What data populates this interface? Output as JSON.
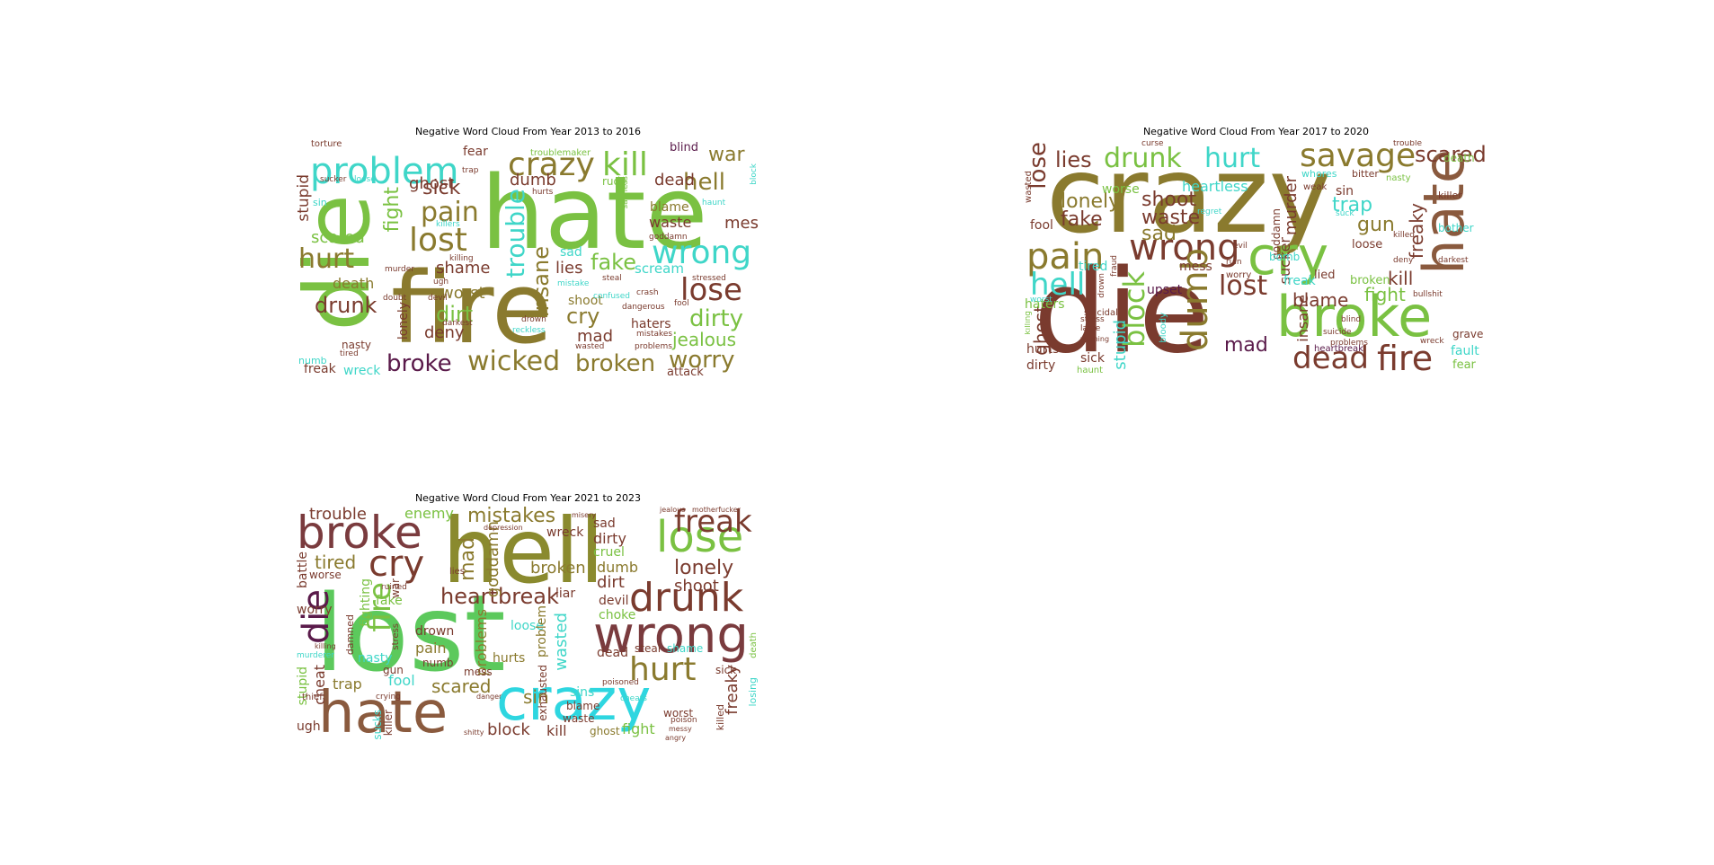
{
  "panels": [
    {
      "title": "Negative Word Cloud From Year 2013 to 2016",
      "words": [
        {
          "t": "die",
          "c": "#7ac142"
        },
        {
          "t": "fire",
          "c": "#8a7a2e"
        },
        {
          "t": "hate",
          "c": "#7ac142"
        },
        {
          "t": "problem",
          "c": "#3fd6c8"
        },
        {
          "t": "crazy",
          "c": "#8a7a2e"
        },
        {
          "t": "kill",
          "c": "#7ac142"
        },
        {
          "t": "hell",
          "c": "#8a7a2e"
        },
        {
          "t": "war",
          "c": "#8a7a2e"
        },
        {
          "t": "lost",
          "c": "#8a7a2e"
        },
        {
          "t": "pain",
          "c": "#8a7a2e"
        },
        {
          "t": "sick",
          "c": "#7a3b2e"
        },
        {
          "t": "hurt",
          "c": "#8a7a2e"
        },
        {
          "t": "ghost",
          "c": "#7a3b2e"
        },
        {
          "t": "fight",
          "c": "#7ac142"
        },
        {
          "t": "drunk",
          "c": "#7a3b2e"
        },
        {
          "t": "scared",
          "c": "#7ac142"
        },
        {
          "t": "stupid",
          "c": "#7a3b2e"
        },
        {
          "t": "trouble",
          "c": "#3fd6c8"
        },
        {
          "t": "insane",
          "c": "#8a7a2e"
        },
        {
          "t": "wrong",
          "c": "#3fd6c8"
        },
        {
          "t": "fake",
          "c": "#7ac142"
        },
        {
          "t": "lose",
          "c": "#7a3b2e"
        },
        {
          "t": "dirty",
          "c": "#7ac142"
        },
        {
          "t": "jealous",
          "c": "#7ac142"
        },
        {
          "t": "worry",
          "c": "#8a7a2e"
        },
        {
          "t": "broken",
          "c": "#8a7a2e"
        },
        {
          "t": "wicked",
          "c": "#8a7a2e"
        },
        {
          "t": "broke",
          "c": "#5a1a4a"
        },
        {
          "t": "cry",
          "c": "#8a7a2e"
        },
        {
          "t": "mad",
          "c": "#7a3b2e"
        },
        {
          "t": "shoot",
          "c": "#8a7a2e"
        },
        {
          "t": "dirt",
          "c": "#7ac142"
        },
        {
          "t": "worst",
          "c": "#8a7a2e"
        },
        {
          "t": "deny",
          "c": "#7a3b2e"
        },
        {
          "t": "shame",
          "c": "#7a3b2e"
        },
        {
          "t": "death",
          "c": "#8a7a2e"
        },
        {
          "t": "lonely",
          "c": "#7a3b2e"
        },
        {
          "t": "dumb",
          "c": "#7a3b2e"
        },
        {
          "t": "dead",
          "c": "#7a3b2e"
        },
        {
          "t": "mess",
          "c": "#7a3b2e"
        },
        {
          "t": "scream",
          "c": "#3fd6c8"
        },
        {
          "t": "lies",
          "c": "#7a3b2e"
        },
        {
          "t": "sad",
          "c": "#3fd6c8"
        },
        {
          "t": "waste",
          "c": "#7a3b2e"
        },
        {
          "t": "blame",
          "c": "#8a7a2e"
        },
        {
          "t": "fear",
          "c": "#7a3b2e"
        },
        {
          "t": "blind",
          "c": "#5a1a4a"
        },
        {
          "t": "haters",
          "c": "#7a3b2e"
        },
        {
          "t": "freak",
          "c": "#7a3b2e"
        },
        {
          "t": "wreck",
          "c": "#3fd6c8"
        },
        {
          "t": "attack",
          "c": "#7a3b2e"
        },
        {
          "t": "nasty",
          "c": "#7a3b2e"
        },
        {
          "t": "numb",
          "c": "#3fd6c8"
        },
        {
          "t": "torture",
          "c": "#7a3b2e"
        },
        {
          "t": "troublemaker",
          "c": "#7ac142"
        },
        {
          "t": "rude",
          "c": "#7ac142"
        },
        {
          "t": "sin",
          "c": "#3fd6c8"
        },
        {
          "t": "sucker",
          "c": "#7a3b2e"
        },
        {
          "t": "loose",
          "c": "#3fd6c8"
        },
        {
          "t": "trap",
          "c": "#7a3b2e"
        },
        {
          "t": "killers",
          "c": "#3fd6c8"
        },
        {
          "t": "murder",
          "c": "#7a3b2e"
        },
        {
          "t": "killing",
          "c": "#7a3b2e"
        },
        {
          "t": "darkest",
          "c": "#7a3b2e"
        },
        {
          "t": "doubt",
          "c": "#7a3b2e"
        },
        {
          "t": "tired",
          "c": "#7a3b2e"
        },
        {
          "t": "dangerous",
          "c": "#7a3b2e"
        },
        {
          "t": "crash",
          "c": "#7a3b2e"
        },
        {
          "t": "drown",
          "c": "#7a3b2e"
        },
        {
          "t": "reckless",
          "c": "#3fd6c8"
        },
        {
          "t": "wasted",
          "c": "#7a3b2e"
        },
        {
          "t": "mistake",
          "c": "#3fd6c8"
        },
        {
          "t": "steal",
          "c": "#7a3b2e"
        },
        {
          "t": "confused",
          "c": "#3fd6c8"
        },
        {
          "t": "sadness",
          "c": "#7ac142"
        },
        {
          "t": "goddamn",
          "c": "#7a3b2e"
        },
        {
          "t": "haunt",
          "c": "#3fd6c8"
        },
        {
          "t": "block",
          "c": "#3fd6c8"
        },
        {
          "t": "fool",
          "c": "#7a3b2e"
        },
        {
          "t": "stressed",
          "c": "#7a3b2e"
        },
        {
          "t": "mistakes",
          "c": "#7a3b2e"
        },
        {
          "t": "problems",
          "c": "#7a3b2e"
        },
        {
          "t": "hurts",
          "c": "#7a3b2e"
        },
        {
          "t": "ugh",
          "c": "#7a3b2e"
        },
        {
          "t": "devil",
          "c": "#7a3b2e"
        }
      ]
    },
    {
      "title": "Negative Word Cloud From Year 2017 to 2020",
      "words": [
        {
          "t": "crazy",
          "c": "#8a7a2e"
        },
        {
          "t": "die",
          "c": "#7a3b2e"
        },
        {
          "t": "hate",
          "c": "#8a5a3e"
        },
        {
          "t": "broke",
          "c": "#7ac142"
        },
        {
          "t": "cry",
          "c": "#7ac142"
        },
        {
          "t": "savage",
          "c": "#8a7a2e"
        },
        {
          "t": "scared",
          "c": "#7a3b2e"
        },
        {
          "t": "drunk",
          "c": "#7ac142"
        },
        {
          "t": "hurt",
          "c": "#3fd6c8"
        },
        {
          "t": "lies",
          "c": "#7a3b2e"
        },
        {
          "t": "lose",
          "c": "#7a3b2e"
        },
        {
          "t": "lonely",
          "c": "#8a7a2e"
        },
        {
          "t": "fake",
          "c": "#7a3b2e"
        },
        {
          "t": "pain",
          "c": "#8a7a2e"
        },
        {
          "t": "hell",
          "c": "#3fd6c8"
        },
        {
          "t": "wrong",
          "c": "#7a3b2e"
        },
        {
          "t": "shoot",
          "c": "#7a3b2e"
        },
        {
          "t": "waste",
          "c": "#7a3b2e"
        },
        {
          "t": "sad",
          "c": "#8a7a2e"
        },
        {
          "t": "heartless",
          "c": "#3fd6c8"
        },
        {
          "t": "dumb",
          "c": "#8a7a2e"
        },
        {
          "t": "block",
          "c": "#7ac142"
        },
        {
          "t": "lost",
          "c": "#7a3b2e"
        },
        {
          "t": "mad",
          "c": "#5a1a4a"
        },
        {
          "t": "dead",
          "c": "#7a3b2e"
        },
        {
          "t": "fire",
          "c": "#7a3b2e"
        },
        {
          "t": "blame",
          "c": "#7a3b2e"
        },
        {
          "t": "fight",
          "c": "#7ac142"
        },
        {
          "t": "kill",
          "c": "#7a3b2e"
        },
        {
          "t": "freaky",
          "c": "#7a3b2e"
        },
        {
          "t": "trap",
          "c": "#3fd6c8"
        },
        {
          "t": "gun",
          "c": "#8a7a2e"
        },
        {
          "t": "murder",
          "c": "#7a3b2e"
        },
        {
          "t": "ghost",
          "c": "#7a3b2e"
        },
        {
          "t": "stupid",
          "c": "#3fd6c8"
        },
        {
          "t": "insane",
          "c": "#7a3b2e"
        },
        {
          "t": "sucker",
          "c": "#7a3b2e"
        },
        {
          "t": "worse",
          "c": "#7ac142"
        },
        {
          "t": "fool",
          "c": "#7a3b2e"
        },
        {
          "t": "haters",
          "c": "#7ac142"
        },
        {
          "t": "hurts",
          "c": "#7a3b2e"
        },
        {
          "t": "dirty",
          "c": "#7a3b2e"
        },
        {
          "t": "sick",
          "c": "#7a3b2e"
        },
        {
          "t": "upset",
          "c": "#5a1a4a"
        },
        {
          "t": "mess",
          "c": "#7a3b2e"
        },
        {
          "t": "tired",
          "c": "#3fd6c8"
        },
        {
          "t": "freak",
          "c": "#3fd6c8"
        },
        {
          "t": "lied",
          "c": "#7a3b2e"
        },
        {
          "t": "broken",
          "c": "#7ac142"
        },
        {
          "t": "loose",
          "c": "#7a3b2e"
        },
        {
          "t": "sin",
          "c": "#7a3b2e"
        },
        {
          "t": "fault",
          "c": "#3fd6c8"
        },
        {
          "t": "fear",
          "c": "#7ac142"
        },
        {
          "t": "grave",
          "c": "#7a3b2e"
        },
        {
          "t": "death",
          "c": "#7ac142"
        },
        {
          "t": "killer",
          "c": "#7a3b2e"
        },
        {
          "t": "bother",
          "c": "#3fd6c8"
        },
        {
          "t": "whores",
          "c": "#3fd6c8"
        },
        {
          "t": "bitter",
          "c": "#7a3b2e"
        },
        {
          "t": "weak",
          "c": "#7a3b2e"
        },
        {
          "t": "curse",
          "c": "#7a3b2e"
        },
        {
          "t": "trouble",
          "c": "#7a3b2e"
        },
        {
          "t": "nasty",
          "c": "#7ac142"
        },
        {
          "t": "wasted",
          "c": "#7a3b2e"
        },
        {
          "t": "suicidal",
          "c": "#7a3b2e"
        },
        {
          "t": "goddamn",
          "c": "#7a3b2e"
        },
        {
          "t": "bomb",
          "c": "#3fd6c8"
        },
        {
          "t": "evil",
          "c": "#7a3b2e"
        },
        {
          "t": "worry",
          "c": "#7a3b2e"
        },
        {
          "t": "ruin",
          "c": "#7a3b2e"
        },
        {
          "t": "killed",
          "c": "#7a3b2e"
        },
        {
          "t": "deny",
          "c": "#7a3b2e"
        },
        {
          "t": "darkest",
          "c": "#7a3b2e"
        },
        {
          "t": "heartbreak",
          "c": "#5a1a4a"
        },
        {
          "t": "suicide",
          "c": "#7a3b2e"
        },
        {
          "t": "bullshit",
          "c": "#7a3b2e"
        },
        {
          "t": "wreck",
          "c": "#7a3b2e"
        },
        {
          "t": "haunt",
          "c": "#7ac142"
        },
        {
          "t": "lame",
          "c": "#7a3b2e"
        },
        {
          "t": "bloody",
          "c": "#3fd6c8"
        },
        {
          "t": "drown",
          "c": "#7a3b2e"
        },
        {
          "t": "killing",
          "c": "#7ac142"
        },
        {
          "t": "worst",
          "c": "#3fd6c8"
        },
        {
          "t": "fraud",
          "c": "#7a3b2e"
        },
        {
          "t": "suck",
          "c": "#3fd6c8"
        },
        {
          "t": "regret",
          "c": "#3fd6c8"
        },
        {
          "t": "stress",
          "c": "#7a3b2e"
        },
        {
          "t": "warning",
          "c": "#7a3b2e"
        },
        {
          "t": "blind",
          "c": "#7a3b2e"
        },
        {
          "t": "problems",
          "c": "#7a3b2e"
        }
      ]
    },
    {
      "title": "Negative Word Cloud From Year 2021 to 2023",
      "words": [
        {
          "t": "lost",
          "c": "#5cc95c"
        },
        {
          "t": "hell",
          "c": "#8a8a2e"
        },
        {
          "t": "broke",
          "c": "#7a3b3e"
        },
        {
          "t": "hate",
          "c": "#8a5a3e"
        },
        {
          "t": "crazy",
          "c": "#2ed6e0"
        },
        {
          "t": "lose",
          "c": "#7ac142"
        },
        {
          "t": "freak",
          "c": "#7a3b2e"
        },
        {
          "t": "drunk",
          "c": "#7a3b2e"
        },
        {
          "t": "wrong",
          "c": "#7a3b3e"
        },
        {
          "t": "cry",
          "c": "#7a3b2e"
        },
        {
          "t": "die",
          "c": "#5a1a4a"
        },
        {
          "t": "mistakes",
          "c": "#8a7a2e"
        },
        {
          "t": "lonely",
          "c": "#7a3b2e"
        },
        {
          "t": "heartbreak",
          "c": "#7a3b2e"
        },
        {
          "t": "hurt",
          "c": "#8a7a2e"
        },
        {
          "t": "shoot",
          "c": "#7a3b2e"
        },
        {
          "t": "fire",
          "c": "#7ac142"
        },
        {
          "t": "tired",
          "c": "#8a7a2e"
        },
        {
          "t": "trouble",
          "c": "#7a3b2e"
        },
        {
          "t": "enemy",
          "c": "#7ac142"
        },
        {
          "t": "mad",
          "c": "#8a7a2e"
        },
        {
          "t": "goddamn",
          "c": "#8a7a2e"
        },
        {
          "t": "broken",
          "c": "#8a7a2e"
        },
        {
          "t": "dirty",
          "c": "#7a3b2e"
        },
        {
          "t": "cruel",
          "c": "#7ac142"
        },
        {
          "t": "dumb",
          "c": "#8a7a2e"
        },
        {
          "t": "dirt",
          "c": "#7a3b2e"
        },
        {
          "t": "devil",
          "c": "#7a3b2e"
        },
        {
          "t": "choke",
          "c": "#7ac142"
        },
        {
          "t": "liar",
          "c": "#7a3b2e"
        },
        {
          "t": "wreck",
          "c": "#7a3b2e"
        },
        {
          "t": "sad",
          "c": "#7a3b2e"
        },
        {
          "t": "scared",
          "c": "#8a7a2e"
        },
        {
          "t": "problems",
          "c": "#8a7a2e"
        },
        {
          "t": "hurts",
          "c": "#8a7a2e"
        },
        {
          "t": "loose",
          "c": "#3fd6c8"
        },
        {
          "t": "wasted",
          "c": "#3fd6c8"
        },
        {
          "t": "problem",
          "c": "#8a7a2e"
        },
        {
          "t": "dead",
          "c": "#7a3b2e"
        },
        {
          "t": "steal",
          "c": "#7a3b2e"
        },
        {
          "t": "shame",
          "c": "#3fd6c8"
        },
        {
          "t": "sick",
          "c": "#7a3b2e"
        },
        {
          "t": "freaky",
          "c": "#7a3b2e"
        },
        {
          "t": "sin",
          "c": "#8a7a2e"
        },
        {
          "t": "sins",
          "c": "#3fd6c8"
        },
        {
          "t": "blame",
          "c": "#7a3b2e"
        },
        {
          "t": "waste",
          "c": "#7a3b2e"
        },
        {
          "t": "block",
          "c": "#7a3b2e"
        },
        {
          "t": "kill",
          "c": "#7a3b2e"
        },
        {
          "t": "ghost",
          "c": "#8a7a2e"
        },
        {
          "t": "fight",
          "c": "#7ac142"
        },
        {
          "t": "worst",
          "c": "#7a3b2e"
        },
        {
          "t": "exhausted",
          "c": "#7a3b2e"
        },
        {
          "t": "cheats",
          "c": "#3fd6c8"
        },
        {
          "t": "poisoned",
          "c": "#7a3b2e"
        },
        {
          "t": "trap",
          "c": "#8a7a2e"
        },
        {
          "t": "fool",
          "c": "#3fd6c8"
        },
        {
          "t": "mess",
          "c": "#7a3b2e"
        },
        {
          "t": "nasty",
          "c": "#3fd6c8"
        },
        {
          "t": "gun",
          "c": "#7a3b2e"
        },
        {
          "t": "numb",
          "c": "#7a3b2e"
        },
        {
          "t": "pain",
          "c": "#8a7a2e"
        },
        {
          "t": "drown",
          "c": "#7a3b2e"
        },
        {
          "t": "fake",
          "c": "#7ac142"
        },
        {
          "t": "fighting",
          "c": "#7ac142"
        },
        {
          "t": "war",
          "c": "#7a3b2e"
        },
        {
          "t": "worse",
          "c": "#7a3b2e"
        },
        {
          "t": "worry",
          "c": "#7a3b2e"
        },
        {
          "t": "battle",
          "c": "#7a3b2e"
        },
        {
          "t": "stupid",
          "c": "#7ac142"
        },
        {
          "t": "cheat",
          "c": "#7a3b2e"
        },
        {
          "t": "ugh",
          "c": "#7a3b2e"
        },
        {
          "t": "thief",
          "c": "#7a3b2e"
        },
        {
          "t": "sucks",
          "c": "#3fd6c8"
        },
        {
          "t": "killer",
          "c": "#7a3b2e"
        },
        {
          "t": "ruined",
          "c": "#7a3b2e"
        },
        {
          "t": "lies",
          "c": "#7a3b2e"
        },
        {
          "t": "damned",
          "c": "#7a3b2e"
        },
        {
          "t": "stress",
          "c": "#7a3b2e"
        },
        {
          "t": "killed",
          "c": "#7a3b2e"
        },
        {
          "t": "losing",
          "c": "#3fd6c8"
        },
        {
          "t": "death",
          "c": "#7ac142"
        },
        {
          "t": "crying",
          "c": "#7a3b2e"
        },
        {
          "t": "murderer",
          "c": "#3fd6c8"
        },
        {
          "t": "poison",
          "c": "#7a3b2e"
        },
        {
          "t": "angry",
          "c": "#7a3b2e"
        },
        {
          "t": "jealous",
          "c": "#7a3b2e"
        },
        {
          "t": "motherfucker",
          "c": "#7a3b2e"
        },
        {
          "t": "killing",
          "c": "#7a3b2e"
        },
        {
          "t": "messy",
          "c": "#7a3b2e"
        },
        {
          "t": "shitty",
          "c": "#7a3b2e"
        },
        {
          "t": "danger",
          "c": "#7a3b2e"
        },
        {
          "t": "depression",
          "c": "#7a3b2e"
        },
        {
          "t": "misery",
          "c": "#7a3b2e"
        }
      ]
    }
  ]
}
